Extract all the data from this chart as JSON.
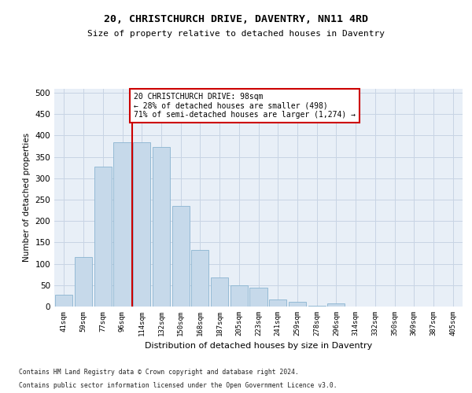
{
  "title1": "20, CHRISTCHURCH DRIVE, DAVENTRY, NN11 4RD",
  "title2": "Size of property relative to detached houses in Daventry",
  "xlabel": "Distribution of detached houses by size in Daventry",
  "ylabel": "Number of detached properties",
  "categories": [
    "41sqm",
    "59sqm",
    "77sqm",
    "96sqm",
    "114sqm",
    "132sqm",
    "150sqm",
    "168sqm",
    "187sqm",
    "205sqm",
    "223sqm",
    "241sqm",
    "259sqm",
    "278sqm",
    "296sqm",
    "314sqm",
    "332sqm",
    "350sqm",
    "369sqm",
    "387sqm",
    "405sqm"
  ],
  "bar_values": [
    28,
    116,
    328,
    384,
    384,
    373,
    235,
    133,
    68,
    50,
    44,
    17,
    11,
    2,
    7,
    0,
    0,
    0,
    0,
    0,
    0
  ],
  "bar_color": "#c6d9ea",
  "bar_edge_color": "#8ab4d0",
  "grid_color": "#c8d4e4",
  "background_color": "#e8eff7",
  "vline_color": "#cc0000",
  "annotation_text": "20 CHRISTCHURCH DRIVE: 98sqm\n← 28% of detached houses are smaller (498)\n71% of semi-detached houses are larger (1,274) →",
  "annotation_box_color": "#ffffff",
  "annotation_box_edge": "#cc0000",
  "footer1": "Contains HM Land Registry data © Crown copyright and database right 2024.",
  "footer2": "Contains public sector information licensed under the Open Government Licence v3.0.",
  "ylim": [
    0,
    510
  ],
  "yticks": [
    0,
    50,
    100,
    150,
    200,
    250,
    300,
    350,
    400,
    450,
    500
  ]
}
